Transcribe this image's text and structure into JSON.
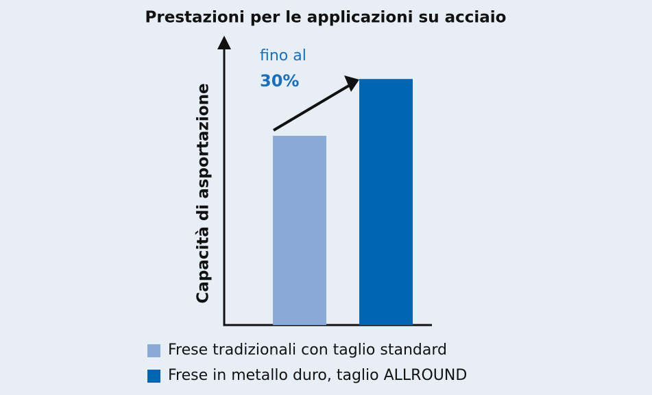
{
  "chart_data": {
    "type": "bar",
    "title": "Prestazioni per le applicazioni su acciaio",
    "y_label": "Capacità di asportazione",
    "series": [
      {
        "name": "Frese tradizionali con taglio standard",
        "color": "#8aabd7",
        "values": [
          100
        ]
      },
      {
        "name": "Frese in metallo duro, taglio ALLROUND",
        "color": "#0066b3",
        "values": [
          130
        ]
      }
    ],
    "ylim": [
      0,
      150
    ],
    "annotation": {
      "text": "fino al",
      "emphasis": "30%",
      "color": "#1a6fb8"
    }
  }
}
